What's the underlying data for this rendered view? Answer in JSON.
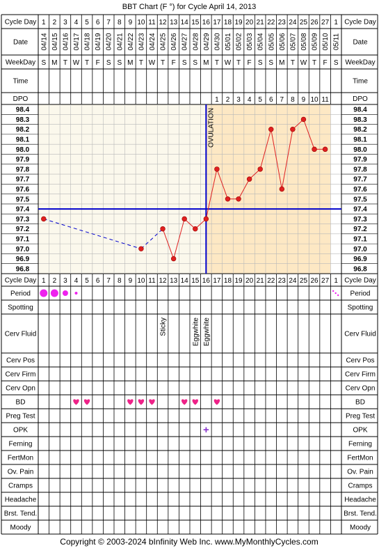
{
  "title": "BBT Chart (F °) for Cycle April 14, 2013",
  "copyright": "Copyright © 2003-2024 bInfinity Web Inc.    www.MyMonthlyCycles.com",
  "row_labels": {
    "cycle_day": "Cycle Day",
    "date": "Date",
    "weekday": "WeekDay",
    "time": "Time",
    "dpo": "DPO",
    "period": "Period",
    "spotting": "Spotting",
    "cerv_fluid": "Cerv Fluid",
    "cerv_pos": "Cerv Pos",
    "cerv_firm": "Cerv Firm",
    "cerv_opn": "Cerv Opn",
    "bd": "BD",
    "preg_test": "Preg Test",
    "opk": "OPK",
    "ferning": "Ferning",
    "fertmon": "FertMon",
    "ov_pain": "Ov. Pain",
    "cramps": "Cramps",
    "headache": "Headache",
    "brst_tend": "Brst. Tend.",
    "moody": "Moody"
  },
  "colors": {
    "follicular_bg": "#fbf8ec",
    "luteal_bg": "#fde8c4",
    "line": "#e02020",
    "coverline": "#0000cc",
    "period": "#ee22ee",
    "heart": "#ee2288",
    "opk": "#8833cc",
    "grid": "#000000"
  },
  "chart_data": {
    "type": "line",
    "title": "BBT Chart (F °) for Cycle April 14, 2013",
    "cycle_days": [
      "1",
      "2",
      "3",
      "4",
      "5",
      "6",
      "7",
      "8",
      "9",
      "10",
      "11",
      "12",
      "13",
      "14",
      "15",
      "16",
      "17",
      "18",
      "19",
      "20",
      "21",
      "22",
      "23",
      "24",
      "25",
      "26",
      "27",
      "1"
    ],
    "dates": [
      "04/14",
      "04/15",
      "04/16",
      "04/17",
      "04/18",
      "04/19",
      "04/20",
      "04/21",
      "04/22",
      "04/23",
      "04/24",
      "04/25",
      "04/26",
      "04/27",
      "04/28",
      "04/29",
      "04/30",
      "05/01",
      "05/02",
      "05/03",
      "05/04",
      "05/05",
      "05/06",
      "05/07",
      "05/08",
      "05/09",
      "05/10",
      "05/11"
    ],
    "weekdays": [
      "S",
      "M",
      "T",
      "W",
      "T",
      "F",
      "S",
      "S",
      "M",
      "T",
      "W",
      "T",
      "F",
      "S",
      "S",
      "M",
      "T",
      "W",
      "T",
      "F",
      "S",
      "S",
      "M",
      "T",
      "W",
      "T",
      "F",
      "S"
    ],
    "dpo": [
      "",
      "",
      "",
      "",
      "",
      "",
      "",
      "",
      "",
      "",
      "",
      "",
      "",
      "",
      "",
      "",
      "1",
      "2",
      "3",
      "4",
      "5",
      "6",
      "7",
      "8",
      "9",
      "10",
      "11",
      ""
    ],
    "y_ticks": [
      "98.4",
      "98.3",
      "98.2",
      "98.1",
      "98.0",
      "97.9",
      "97.8",
      "97.7",
      "97.6",
      "97.5",
      "97.4",
      "97.3",
      "97.2",
      "97.1",
      "97.0",
      "96.9",
      "96.8"
    ],
    "ylim": [
      96.8,
      98.4
    ],
    "temps": [
      97.3,
      null,
      null,
      null,
      null,
      null,
      null,
      null,
      null,
      97.0,
      null,
      97.2,
      96.9,
      97.3,
      97.2,
      97.3,
      97.8,
      97.5,
      97.5,
      97.7,
      97.8,
      98.2,
      97.6,
      98.2,
      98.3,
      98.0,
      98.0,
      null
    ],
    "coverline": 97.4,
    "ovulation_day": 16,
    "ovulation_label": "OVULATION",
    "period": [
      3,
      3,
      2,
      1,
      0,
      0,
      0,
      0,
      0,
      0,
      0,
      0,
      0,
      0,
      0,
      0,
      0,
      0,
      0,
      0,
      0,
      0,
      0,
      0,
      0,
      0,
      0,
      0
    ],
    "period_next_spotting_index": 27,
    "cerv_fluid": {
      "12": "Sticky",
      "15": "Eggwhite",
      "16": "Eggwhite"
    },
    "bd_days": [
      4,
      5,
      9,
      10,
      11,
      14,
      15,
      17
    ],
    "opk": {
      "16": "+"
    }
  }
}
